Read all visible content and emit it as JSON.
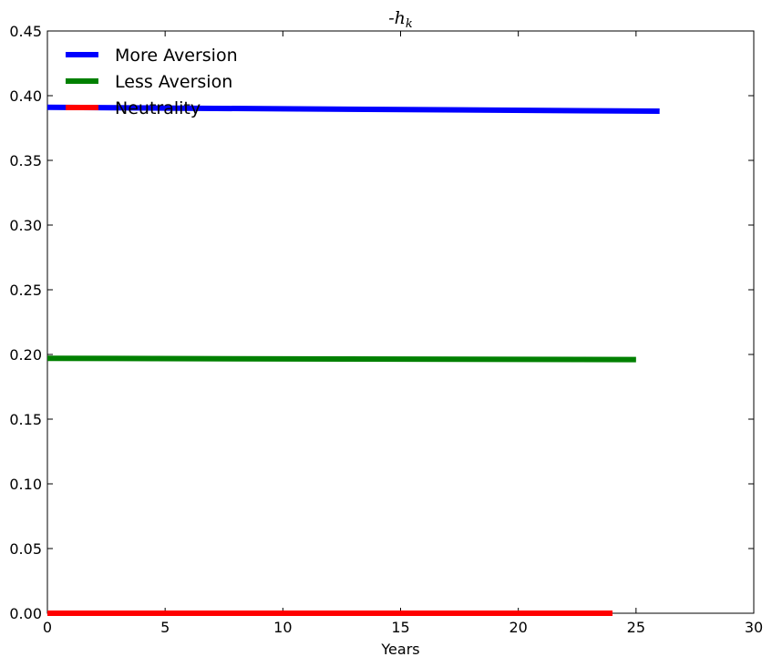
{
  "chart_data": {
    "type": "line",
    "title": "-h_k",
    "xlabel": "Years",
    "ylabel": "",
    "xlim": [
      0,
      30
    ],
    "ylim": [
      0,
      0.45
    ],
    "xticks": [
      0,
      5,
      10,
      15,
      20,
      25,
      30
    ],
    "xtick_labels": [
      "0",
      "5",
      "10",
      "15",
      "20",
      "25",
      "30"
    ],
    "yticks": [
      0.0,
      0.05,
      0.1,
      0.15,
      0.2,
      0.25,
      0.3,
      0.35,
      0.4,
      0.45
    ],
    "ytick_labels": [
      "0.00",
      "0.05",
      "0.10",
      "0.15",
      "0.20",
      "0.25",
      "0.30",
      "0.35",
      "0.40",
      "0.45"
    ],
    "grid": false,
    "legend": "top-left",
    "series": [
      {
        "name": "More Aversion",
        "color": "#0000ff",
        "x": [
          0,
          26
        ],
        "y": [
          0.391,
          0.388
        ]
      },
      {
        "name": "Less Aversion",
        "color": "#008000",
        "x": [
          0,
          25
        ],
        "y": [
          0.197,
          0.196
        ]
      },
      {
        "name": "Neutrality",
        "color": "#ff0000",
        "x": [
          0,
          24
        ],
        "y": [
          0.0,
          0.0
        ]
      }
    ]
  }
}
